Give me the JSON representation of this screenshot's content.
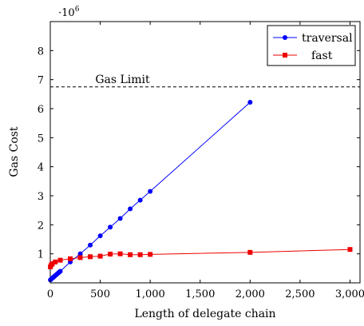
{
  "chart_data": {
    "type": "line",
    "title": "",
    "xlabel": "Length of delegate chain",
    "ylabel": "Gas Cost",
    "y_scale_label": {
      "base": "·10",
      "exp": "6"
    },
    "xlim": [
      0,
      3100
    ],
    "ylim": [
      0,
      9
    ],
    "x_ticks": [
      0,
      500,
      1000,
      1500,
      2000,
      2500,
      3000
    ],
    "x_tick_labels": [
      "0",
      "500",
      "1,000",
      "1,500",
      "2,000",
      "2,500",
      "3,000"
    ],
    "y_ticks": [
      1,
      2,
      3,
      4,
      5,
      6,
      7,
      8
    ],
    "y_tick_labels": [
      "1",
      "2",
      "3",
      "4",
      "5",
      "6",
      "7",
      "8"
    ],
    "legend_position": "top-right",
    "grid": false,
    "series": [
      {
        "name": "traversal",
        "color": "#0000ff",
        "marker": "circle",
        "x": [
          1,
          10,
          20,
          30,
          40,
          50,
          60,
          70,
          80,
          90,
          100,
          200,
          300,
          400,
          500,
          600,
          700,
          800,
          900,
          1000,
          2000
        ],
        "y": [
          0.1,
          0.13,
          0.16,
          0.19,
          0.22,
          0.25,
          0.28,
          0.31,
          0.34,
          0.37,
          0.4,
          0.72,
          1.0,
          1.3,
          1.62,
          1.92,
          2.22,
          2.55,
          2.85,
          3.15,
          6.22
        ]
      },
      {
        "name": "fast",
        "color": "#ee0000",
        "marker": "square",
        "x": [
          1,
          10,
          20,
          50,
          100,
          200,
          300,
          400,
          500,
          600,
          700,
          800,
          900,
          1000,
          2000,
          3000
        ],
        "y": [
          0.55,
          0.62,
          0.66,
          0.72,
          0.78,
          0.83,
          0.87,
          0.9,
          0.92,
          0.99,
          1.0,
          0.97,
          0.97,
          0.98,
          1.05,
          1.15
        ]
      }
    ],
    "reference_line": {
      "label": "Gas Limit",
      "y": 6.75,
      "style": "dashed"
    }
  }
}
